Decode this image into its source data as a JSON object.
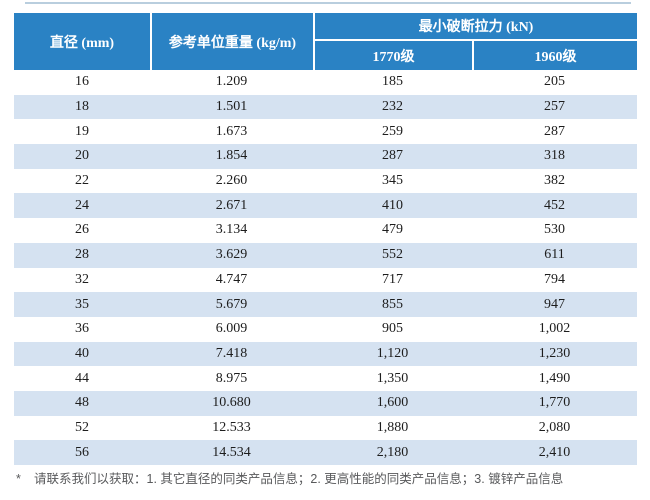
{
  "colors": {
    "header_bg": "#2a82c4",
    "row_alt_bg": "#d5e2f1",
    "header_text": "#ffffff",
    "body_text": "#1d1d1d",
    "note_text": "#58595b",
    "top_rule": "#b9cede"
  },
  "table": {
    "header": {
      "diameter": "直径 (mm)",
      "unit_weight": "参考单位重量 (kg/m)",
      "breaking_force_group": "最小破断拉力 (kN)",
      "grade_1770": "1770级",
      "grade_1960": "1960级"
    },
    "rows": [
      {
        "diameter": "16",
        "weight": "1.209",
        "f1770": "185",
        "f1960": "205"
      },
      {
        "diameter": "18",
        "weight": "1.501",
        "f1770": "232",
        "f1960": "257"
      },
      {
        "diameter": "19",
        "weight": "1.673",
        "f1770": "259",
        "f1960": "287"
      },
      {
        "diameter": "20",
        "weight": "1.854",
        "f1770": "287",
        "f1960": "318"
      },
      {
        "diameter": "22",
        "weight": "2.260",
        "f1770": "345",
        "f1960": "382"
      },
      {
        "diameter": "24",
        "weight": "2.671",
        "f1770": "410",
        "f1960": "452"
      },
      {
        "diameter": "26",
        "weight": "3.134",
        "f1770": "479",
        "f1960": "530"
      },
      {
        "diameter": "28",
        "weight": "3.629",
        "f1770": "552",
        "f1960": "611"
      },
      {
        "diameter": "32",
        "weight": "4.747",
        "f1770": "717",
        "f1960": "794"
      },
      {
        "diameter": "35",
        "weight": "5.679",
        "f1770": "855",
        "f1960": "947"
      },
      {
        "diameter": "36",
        "weight": "6.009",
        "f1770": "905",
        "f1960": "1,002"
      },
      {
        "diameter": "40",
        "weight": "7.418",
        "f1770": "1,120",
        "f1960": "1,230"
      },
      {
        "diameter": "44",
        "weight": "8.975",
        "f1770": "1,350",
        "f1960": "1,490"
      },
      {
        "diameter": "48",
        "weight": "10.680",
        "f1770": "1,600",
        "f1960": "1,770"
      },
      {
        "diameter": "52",
        "weight": "12.533",
        "f1770": "1,880",
        "f1960": "2,080"
      },
      {
        "diameter": "56",
        "weight": "14.534",
        "f1770": "2,180",
        "f1960": "2,410"
      }
    ]
  },
  "footnote": {
    "marker": "*",
    "text": "请联系我们以获取：1. 其它直径的同类产品信息；2. 更高性能的同类产品信息；3. 镀锌产品信息"
  },
  "chart_data": {
    "type": "table",
    "title": "最小破断拉力 (kN)",
    "columns": [
      "直径 (mm)",
      "参考单位重量 (kg/m)",
      "最小破断拉力 (kN) 1770级",
      "最小破断拉力 (kN) 1960级"
    ],
    "diameter_mm": [
      16,
      18,
      19,
      20,
      22,
      24,
      26,
      28,
      32,
      35,
      36,
      40,
      44,
      48,
      52,
      56
    ],
    "unit_weight_kg_per_m": [
      1.209,
      1.501,
      1.673,
      1.854,
      2.26,
      2.671,
      3.134,
      3.629,
      4.747,
      5.679,
      6.009,
      7.418,
      8.975,
      10.68,
      12.533,
      14.534
    ],
    "min_breaking_force_kN_1770": [
      185,
      232,
      259,
      287,
      345,
      410,
      479,
      552,
      717,
      855,
      905,
      1120,
      1350,
      1600,
      1880,
      2180
    ],
    "min_breaking_force_kN_1960": [
      205,
      257,
      287,
      318,
      382,
      452,
      530,
      611,
      794,
      947,
      1002,
      1230,
      1490,
      1770,
      2080,
      2410
    ]
  }
}
